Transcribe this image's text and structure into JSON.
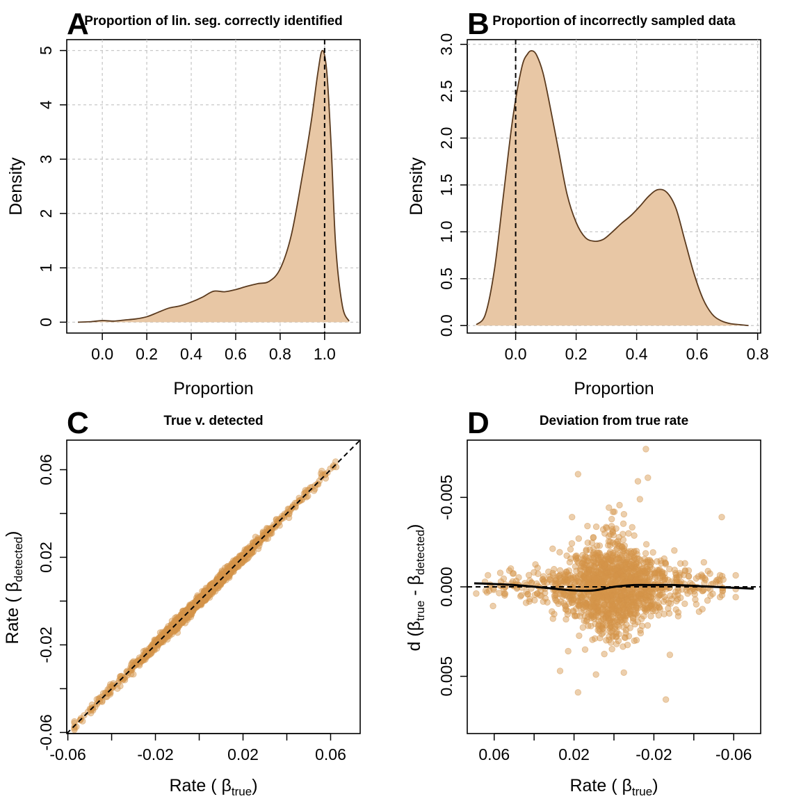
{
  "colors": {
    "fill": "#e8c7a5",
    "stroke": "#5a3a1e",
    "point": "#d4944a",
    "grid": "#c8c8c8",
    "ref": "#000000"
  },
  "panels": {
    "A": {
      "letter": "A",
      "title": "Proportion of lin. seg. correctly identified",
      "xlabel": "Proportion",
      "ylabel": "Density"
    },
    "B": {
      "letter": "B",
      "title": "Proportion of incorrectly sampled data",
      "xlabel": "Proportion",
      "ylabel": "Density"
    },
    "C": {
      "letter": "C",
      "title": "True v. detected",
      "xlabel_main": "Rate ( ",
      "xlabel_beta": "β",
      "xlabel_sub": "true",
      "xlabel_end": ")",
      "ylabel_main": "Rate ( ",
      "ylabel_beta": "β",
      "ylabel_sub": "detected",
      "ylabel_end": ")"
    },
    "D": {
      "letter": "D",
      "title": "Deviation from true rate",
      "xlabel_main": "Rate ( ",
      "xlabel_beta": "β",
      "xlabel_sub": "true",
      "xlabel_end": ")",
      "ylabel_main": "d (",
      "ylabel_beta1": "β",
      "ylabel_sub1": "true",
      "ylabel_mid": " - ",
      "ylabel_beta2": "β",
      "ylabel_sub2": "detected",
      "ylabel_end": ")"
    }
  },
  "chart_data": [
    {
      "id": "A",
      "type": "area",
      "title": "Proportion of lin. seg. correctly identified",
      "xlabel": "Proportion",
      "ylabel": "Density",
      "xlim": [
        -0.16,
        1.16
      ],
      "ylim": [
        -0.2,
        5.2
      ],
      "xticks": [
        0.0,
        0.2,
        0.4,
        0.6,
        0.8,
        1.0
      ],
      "xtick_labels": [
        "0.0",
        "0.2",
        "0.4",
        "0.6",
        "0.8",
        "1.0"
      ],
      "yticks": [
        0,
        1,
        2,
        3,
        4,
        5
      ],
      "ytick_labels": [
        "0",
        "1",
        "2",
        "3",
        "4",
        "5"
      ],
      "grid": true,
      "ref_line": {
        "axis": "x",
        "value": 1.0,
        "style": "dashed"
      },
      "x": [
        -0.11,
        -0.05,
        0.0,
        0.05,
        0.1,
        0.15,
        0.2,
        0.25,
        0.3,
        0.35,
        0.4,
        0.45,
        0.5,
        0.55,
        0.6,
        0.65,
        0.7,
        0.75,
        0.8,
        0.85,
        0.9,
        0.94,
        0.97,
        0.99,
        1.01,
        1.03,
        1.05,
        1.08,
        1.11
      ],
      "y": [
        0.0,
        0.01,
        0.03,
        0.02,
        0.04,
        0.06,
        0.1,
        0.18,
        0.26,
        0.3,
        0.37,
        0.46,
        0.57,
        0.56,
        0.6,
        0.66,
        0.71,
        0.75,
        0.98,
        1.6,
        2.7,
        3.7,
        4.6,
        5.0,
        4.6,
        3.2,
        1.4,
        0.3,
        0.02
      ]
    },
    {
      "id": "B",
      "type": "area",
      "title": "Proportion of incorrectly sampled data",
      "xlabel": "Proportion",
      "ylabel": "Density",
      "xlim": [
        -0.16,
        0.81
      ],
      "ylim": [
        -0.08,
        3.05
      ],
      "xticks": [
        0.0,
        0.2,
        0.4,
        0.6,
        0.8
      ],
      "xtick_labels": [
        "0.0",
        "0.2",
        "0.4",
        "0.6",
        "0.8"
      ],
      "yticks": [
        0.0,
        0.5,
        1.0,
        1.5,
        2.0,
        2.5,
        3.0
      ],
      "ytick_labels": [
        "0.0",
        "0.5",
        "1.0",
        "1.5",
        "2.0",
        "2.5",
        "3.0"
      ],
      "grid": true,
      "ref_line": {
        "axis": "x",
        "value": 0.0,
        "style": "dashed"
      },
      "x": [
        -0.13,
        -0.1,
        -0.07,
        -0.04,
        -0.01,
        0.02,
        0.04,
        0.055,
        0.07,
        0.09,
        0.11,
        0.14,
        0.17,
        0.2,
        0.23,
        0.26,
        0.29,
        0.32,
        0.35,
        0.38,
        0.41,
        0.44,
        0.47,
        0.5,
        0.53,
        0.56,
        0.59,
        0.62,
        0.65,
        0.68,
        0.71,
        0.74,
        0.77
      ],
      "y": [
        0.01,
        0.12,
        0.6,
        1.4,
        2.2,
        2.75,
        2.9,
        2.93,
        2.88,
        2.7,
        2.4,
        1.9,
        1.4,
        1.1,
        0.94,
        0.9,
        0.92,
        1.0,
        1.09,
        1.17,
        1.27,
        1.38,
        1.45,
        1.42,
        1.25,
        0.9,
        0.55,
        0.28,
        0.12,
        0.05,
        0.02,
        0.01,
        0.0
      ]
    },
    {
      "id": "C",
      "type": "scatter",
      "title": "True v. detected",
      "xlim": [
        -0.0605,
        0.0735
      ],
      "ylim": [
        -0.0605,
        0.0735
      ],
      "xticks": [
        -0.06,
        -0.04,
        -0.02,
        0.0,
        0.02,
        0.04,
        0.06
      ],
      "xtick_labels": [
        "-0.06",
        "",
        "-0.02",
        "",
        "0.02",
        "",
        "0.06"
      ],
      "yticks": [
        -0.06,
        -0.04,
        -0.02,
        0.0,
        0.02,
        0.04,
        0.06
      ],
      "ytick_labels": [
        "-0.06",
        "",
        "-0.02",
        "",
        "0.02",
        "",
        "0.06"
      ],
      "grid": false,
      "ref_line": {
        "type": "identity",
        "style": "dashed"
      },
      "points_summary": {
        "n_points": 1500,
        "x_range": [
          -0.057,
          0.07
        ],
        "relation": "detected approximately equals true",
        "spread": 0.0012
      }
    },
    {
      "id": "D",
      "type": "scatter",
      "title": "Deviation from true rate",
      "xlim": [
        0.0735,
        -0.0735
      ],
      "ylim": [
        0.0082,
        -0.0082
      ],
      "xticks": [
        0.06,
        0.04,
        0.02,
        0.0,
        -0.02,
        -0.04,
        -0.06
      ],
      "xtick_labels": [
        "0.06",
        "",
        "0.02",
        "",
        "-0.02",
        "",
        "-0.06"
      ],
      "yticks": [
        0.005,
        0.0,
        -0.005
      ],
      "ytick_labels": [
        "0.005",
        "0.000",
        "-0.005"
      ],
      "grid": false,
      "ref_line": {
        "axis": "y",
        "value": 0.0,
        "style": "dashed"
      },
      "smooth_line": {
        "x": [
          0.07,
          0.05,
          0.03,
          0.02,
          0.01,
          0.0,
          -0.01,
          -0.02,
          -0.03,
          -0.05,
          -0.07
        ],
        "y": [
          -0.0002,
          -0.0001,
          0.0001,
          0.0002,
          0.0002,
          0.0,
          -0.0001,
          -0.0001,
          -0.0001,
          0.0,
          0.0001
        ]
      },
      "outliers": [
        {
          "x": 0.018,
          "y": -0.0063
        },
        {
          "x": -0.016,
          "y": -0.0077
        },
        {
          "x": -0.012,
          "y": -0.0059
        },
        {
          "x": -0.017,
          "y": -0.0061
        },
        {
          "x": -0.013,
          "y": -0.0049
        },
        {
          "x": -0.054,
          "y": -0.0039
        },
        {
          "x": 0.021,
          "y": -0.0039
        },
        {
          "x": 0.018,
          "y": 0.0059
        },
        {
          "x": -0.026,
          "y": 0.0063
        },
        {
          "x": 0.027,
          "y": 0.0047
        },
        {
          "x": 0.009,
          "y": 0.0049
        },
        {
          "x": -0.028,
          "y": 0.0038
        }
      ],
      "points_summary": {
        "n_points": 1500,
        "x_range": [
          0.069,
          -0.061
        ],
        "spread": 0.0012
      }
    }
  ]
}
